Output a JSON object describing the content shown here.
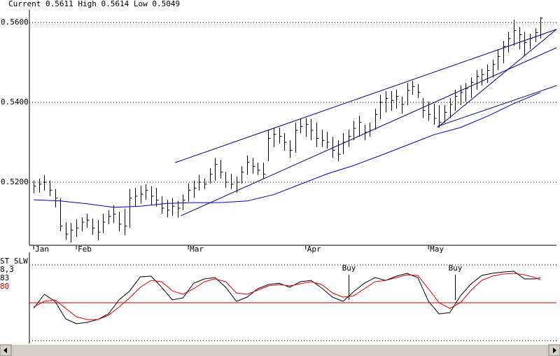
{
  "header": [
    {
      "label": "Current",
      "value": 0.5611
    },
    {
      "label": "High",
      "value": 0.5614
    },
    {
      "label": "Low",
      "value": 0.5049
    }
  ],
  "chart_data": [
    {
      "type": "ohlc",
      "color": "#000000",
      "high": [
        0.5204,
        0.5209,
        0.5218,
        0.5204,
        0.5183,
        0.516,
        0.51,
        0.5098,
        0.5107,
        0.5112,
        0.5121,
        0.5109,
        0.5105,
        0.5121,
        0.513,
        0.5142,
        0.5126,
        0.5133,
        0.5183,
        0.5186,
        0.5191,
        0.5195,
        0.519,
        0.5186,
        0.5165,
        0.5156,
        0.516,
        0.5153,
        0.5169,
        0.5197,
        0.5204,
        0.5218,
        0.5209,
        0.5235,
        0.5261,
        0.5256,
        0.5226,
        0.5221,
        0.5214,
        0.524,
        0.5267,
        0.5261,
        0.5249,
        0.5249,
        0.5332,
        0.5337,
        0.5337,
        0.5323,
        0.5305,
        0.5349,
        0.5358,
        0.5361,
        0.5358,
        0.5349,
        0.5332,
        0.5326,
        0.5314,
        0.5305,
        0.5323,
        0.5332,
        0.5354,
        0.5367,
        0.5344,
        0.5349,
        0.5384,
        0.5419,
        0.5428,
        0.5428,
        0.5432,
        0.5414,
        0.5449,
        0.5454,
        0.5446,
        0.5411,
        0.5402,
        0.5397,
        0.5393,
        0.5393,
        0.5411,
        0.5432,
        0.5442,
        0.5449,
        0.5463,
        0.5481,
        0.5484,
        0.5495,
        0.5507,
        0.5533,
        0.5554,
        0.5577,
        0.5607,
        0.5589,
        0.5577,
        0.5572,
        0.5586,
        0.5614
      ],
      "low": [
        0.5172,
        0.5174,
        0.5179,
        0.5165,
        0.5137,
        0.5077,
        0.5056,
        0.5049,
        0.5063,
        0.5077,
        0.5086,
        0.5068,
        0.5054,
        0.5072,
        0.5095,
        0.5098,
        0.5077,
        0.5067,
        0.5086,
        0.5139,
        0.5147,
        0.5156,
        0.5144,
        0.5139,
        0.5121,
        0.5112,
        0.5116,
        0.5112,
        0.513,
        0.5151,
        0.5161,
        0.5179,
        0.5183,
        0.5197,
        0.5204,
        0.5209,
        0.5186,
        0.5183,
        0.5174,
        0.5197,
        0.5218,
        0.5221,
        0.5218,
        0.5209,
        0.5253,
        0.5288,
        0.5297,
        0.5279,
        0.5261,
        0.5274,
        0.5323,
        0.5314,
        0.5305,
        0.5288,
        0.5288,
        0.5284,
        0.5261,
        0.5253,
        0.527,
        0.5288,
        0.5305,
        0.5314,
        0.5305,
        0.5314,
        0.5332,
        0.5358,
        0.5375,
        0.5379,
        0.5384,
        0.5372,
        0.5393,
        0.5419,
        0.5411,
        0.5361,
        0.5354,
        0.5344,
        0.5337,
        0.5349,
        0.5361,
        0.5379,
        0.5393,
        0.5402,
        0.5411,
        0.5432,
        0.5442,
        0.5449,
        0.5463,
        0.5481,
        0.5498,
        0.5525,
        0.5542,
        0.5533,
        0.5516,
        0.5533,
        0.5551,
        0.556
      ],
      "close": [
        0.519,
        0.5195,
        0.52,
        0.518,
        0.516,
        0.509,
        0.507,
        0.508,
        0.5085,
        0.51,
        0.5105,
        0.5085,
        0.5075,
        0.51,
        0.5115,
        0.512,
        0.5095,
        0.509,
        0.516,
        0.5165,
        0.517,
        0.518,
        0.5165,
        0.5155,
        0.5135,
        0.513,
        0.514,
        0.5135,
        0.5155,
        0.518,
        0.5185,
        0.52,
        0.5195,
        0.522,
        0.5245,
        0.5225,
        0.52,
        0.5195,
        0.52,
        0.5225,
        0.525,
        0.524,
        0.523,
        0.522,
        0.531,
        0.532,
        0.5315,
        0.53,
        0.528,
        0.533,
        0.534,
        0.5345,
        0.533,
        0.531,
        0.5305,
        0.53,
        0.528,
        0.527,
        0.53,
        0.5315,
        0.5335,
        0.535,
        0.5325,
        0.533,
        0.537,
        0.54,
        0.541,
        0.5405,
        0.5415,
        0.5395,
        0.543,
        0.544,
        0.5425,
        0.538,
        0.537,
        0.536,
        0.535,
        0.5375,
        0.5395,
        0.5415,
        0.5425,
        0.5435,
        0.545,
        0.5465,
        0.547,
        0.548,
        0.5495,
        0.5515,
        0.554,
        0.556,
        0.558,
        0.557,
        0.555,
        0.556,
        0.5575,
        0.5611
      ],
      "moving_average": {
        "color": "#0000c0",
        "x": [
          0,
          5,
          10,
          15,
          20,
          25,
          30,
          35,
          40,
          45,
          50,
          55,
          60,
          65,
          70,
          75,
          80,
          85,
          90,
          95
        ],
        "values": [
          0.5156,
          0.5153,
          0.5146,
          0.5137,
          0.514,
          0.5147,
          0.5149,
          0.5149,
          0.5153,
          0.5169,
          0.5195,
          0.5221,
          0.5242,
          0.5267,
          0.5293,
          0.5319,
          0.5337,
          0.5365,
          0.5397,
          0.5425
        ]
      },
      "trendlines": {
        "color": "#000080",
        "lines": [
          {
            "x": [
              26.5,
              98
            ],
            "values": [
              0.5249,
              0.5583
            ]
          },
          {
            "x": [
              27.6,
              98
            ],
            "values": [
              0.5116,
              0.5537
            ]
          },
          {
            "x": [
              75.7,
              98
            ],
            "values": [
              0.5337,
              0.5583
            ]
          },
          {
            "x": [
              75.7,
              98
            ],
            "values": [
              0.534,
              0.5442
            ]
          }
        ]
      },
      "xlim": [
        -0.8,
        98
      ],
      "xticks": [
        {
          "value": 0,
          "label": "Jan"
        },
        {
          "value": 8,
          "label": "Feb"
        },
        {
          "value": 29,
          "label": "Mar"
        },
        {
          "value": 51,
          "label": "Apr"
        },
        {
          "value": 74,
          "label": "May"
        }
      ],
      "ylim": [
        0.5042,
        0.5632
      ],
      "yticks": [
        {
          "value": 0.52,
          "label": "0.5200"
        },
        {
          "value": 0.54,
          "label": "0.5400"
        },
        {
          "value": 0.56,
          "label": "0.5600"
        }
      ],
      "grid": true
    },
    {
      "type": "line",
      "title": "ST_SLW",
      "subtitle": "8,3",
      "x": [
        0,
        2,
        4,
        6,
        8,
        10,
        12,
        14,
        16,
        18,
        20,
        22,
        24,
        26,
        28,
        30,
        32,
        34,
        36,
        38,
        40,
        42,
        44,
        46,
        48,
        50,
        52,
        54,
        56,
        58,
        60,
        62,
        64,
        66,
        68,
        70,
        72,
        74,
        76,
        78,
        80,
        82,
        84,
        86,
        88,
        90,
        92,
        94,
        95
      ],
      "series": [
        {
          "color": "#000000",
          "values": [
            42.6,
            61.1,
            51.9,
            28.7,
            22.2,
            24.1,
            27.8,
            35.2,
            53.7,
            65.7,
            84.3,
            85.2,
            70.4,
            53.7,
            56.5,
            75.9,
            81.5,
            83.3,
            70.4,
            51.9,
            57.4,
            68.5,
            74.1,
            75.9,
            70.4,
            77.8,
            79.6,
            69.4,
            57.4,
            51.9,
            64.8,
            75.9,
            83.3,
            79.6,
            85.2,
            88.9,
            83.3,
            51.9,
            35.2,
            37.0,
            59.3,
            75.0,
            86.1,
            88.9,
            90.7,
            91.7,
            81.5,
            81.5,
            83
          ]
        },
        {
          "color": "#e00000",
          "values": [
            44.4,
            51.9,
            53.7,
            42.6,
            31.5,
            27.8,
            27.8,
            33.3,
            44.4,
            56.5,
            70.4,
            79.6,
            77.8,
            65.7,
            61.1,
            68.5,
            77.8,
            81.5,
            77.8,
            63.0,
            61.1,
            66.7,
            72.2,
            74.1,
            72.2,
            75.0,
            77.8,
            74.1,
            63.0,
            57.4,
            59.3,
            68.5,
            77.8,
            79.6,
            83.3,
            87.0,
            86.1,
            68.5,
            50.0,
            42.6,
            50.0,
            66.7,
            79.6,
            85.2,
            88.0,
            88.9,
            87.0,
            83.3,
            80
          ]
        }
      ],
      "reference_line": {
        "value": 50,
        "color": "#c00000"
      },
      "annotations": [
        {
          "text": "Buy",
          "x": 59
        },
        {
          "text": "Buy",
          "x": 79
        }
      ],
      "xlim": [
        -0.8,
        98
      ],
      "ylim": [
        -3.7,
        116.7
      ],
      "yticks": [
        0,
        100
      ],
      "grid": true
    }
  ]
}
